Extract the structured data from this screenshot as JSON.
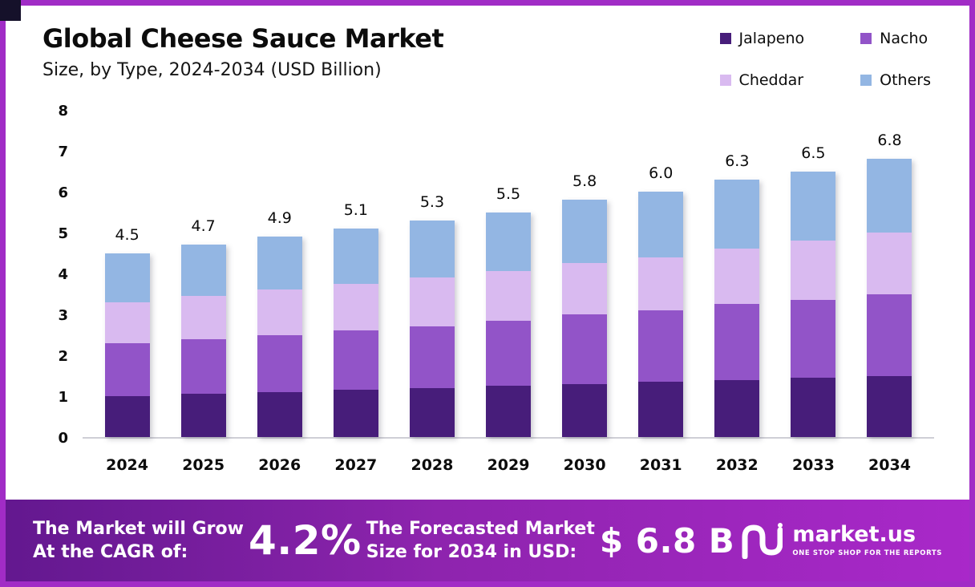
{
  "frame": {
    "border_color": "#a12cc6"
  },
  "header": {
    "title": "Global Cheese Sauce Market",
    "subtitle": "Size, by Type, 2024-2034 (USD Billion)"
  },
  "legend": [
    {
      "label": "Jalapeno",
      "color": "#471d7a"
    },
    {
      "label": "Nacho",
      "color": "#9254c8"
    },
    {
      "label": "Cheddar",
      "color": "#d9baf0"
    },
    {
      "label": "Others",
      "color": "#93b6e3"
    }
  ],
  "chart_data": {
    "type": "bar",
    "stacked": true,
    "title": "Global Cheese Sauce Market Size, by Type, 2024-2034 (USD Billion)",
    "xlabel": "",
    "ylabel": "",
    "ylim": [
      0,
      8
    ],
    "yticks": [
      0,
      1,
      2,
      3,
      4,
      5,
      6,
      7,
      8
    ],
    "grid": false,
    "legend_position": "top-right",
    "categories": [
      "2024",
      "2025",
      "2026",
      "2027",
      "2028",
      "2029",
      "2030",
      "2031",
      "2032",
      "2033",
      "2034"
    ],
    "series": [
      {
        "name": "Jalapeno",
        "color": "#471d7a",
        "values": [
          1.0,
          1.05,
          1.1,
          1.15,
          1.2,
          1.25,
          1.3,
          1.35,
          1.4,
          1.45,
          1.5
        ]
      },
      {
        "name": "Nacho",
        "color": "#9254c8",
        "values": [
          1.3,
          1.35,
          1.4,
          1.45,
          1.5,
          1.6,
          1.7,
          1.75,
          1.85,
          1.9,
          2.0
        ]
      },
      {
        "name": "Cheddar",
        "color": "#d9baf0",
        "values": [
          1.0,
          1.05,
          1.1,
          1.15,
          1.2,
          1.2,
          1.25,
          1.3,
          1.35,
          1.45,
          1.5
        ]
      },
      {
        "name": "Others",
        "color": "#93b6e3",
        "values": [
          1.2,
          1.25,
          1.3,
          1.35,
          1.4,
          1.45,
          1.55,
          1.6,
          1.7,
          1.7,
          1.8
        ]
      }
    ],
    "totals": [
      "4.5",
      "4.7",
      "4.9",
      "5.1",
      "5.3",
      "5.5",
      "5.8",
      "6.0",
      "6.3",
      "6.5",
      "6.8"
    ]
  },
  "banner": {
    "cagr_label_line1": "The Market will Grow",
    "cagr_label_line2": "At the CAGR of:",
    "cagr_value": "4.2%",
    "forecast_label_line1": "The Forecasted Market",
    "forecast_label_line2": "Size for 2034 in USD:",
    "forecast_value": "$ 6.8 B",
    "logo_text": "market.us",
    "logo_tagline": "ONE STOP SHOP FOR THE REPORTS"
  }
}
